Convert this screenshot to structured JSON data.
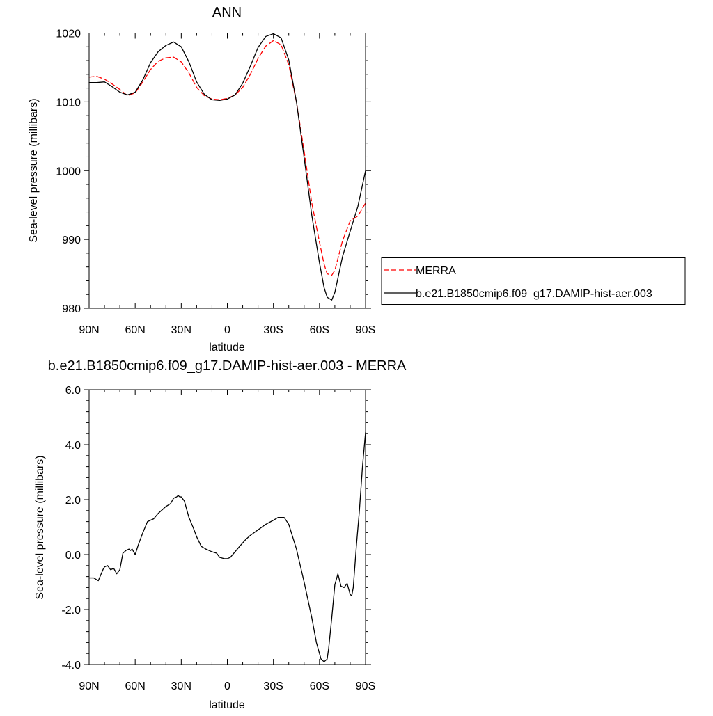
{
  "chart_data": [
    {
      "type": "line",
      "title": "ANN",
      "xlabel": "latitude",
      "ylabel": "Sea-level pressure (millibars)",
      "x_reversed": true,
      "xlim": [
        -90,
        90
      ],
      "ylim": [
        980,
        1020
      ],
      "x_ticks": [
        90,
        60,
        30,
        0,
        -30,
        -60,
        -90
      ],
      "x_tick_labels": [
        "90N",
        "60N",
        "30N",
        "0",
        "30S",
        "60S",
        "90S"
      ],
      "y_ticks": [
        980,
        990,
        1000,
        1010,
        1020
      ],
      "y_tick_labels": [
        "980",
        "990",
        "1000",
        "1010",
        "1020"
      ],
      "legend": "right",
      "x": [
        90,
        85,
        80,
        75,
        70,
        65,
        60,
        55,
        50,
        45,
        40,
        35,
        30,
        25,
        20,
        15,
        10,
        5,
        0,
        -5,
        -10,
        -15,
        -20,
        -25,
        -30,
        -35,
        -40,
        -45,
        -50,
        -55,
        -60,
        -63,
        -65,
        -68,
        -70,
        -75,
        -80,
        -85,
        -90
      ],
      "series": [
        {
          "name": "MERRA",
          "color": "#ff0000",
          "dash": "dashed",
          "values": [
            1013.6,
            1013.7,
            1013.3,
            1012.6,
            1011.8,
            1010.9,
            1011.3,
            1012.9,
            1014.7,
            1015.9,
            1016.4,
            1016.5,
            1015.8,
            1014.2,
            1012.1,
            1010.9,
            1010.4,
            1010.3,
            1010.5,
            1011.0,
            1012.1,
            1014.0,
            1016.3,
            1018.1,
            1018.9,
            1018.3,
            1015.4,
            1010.0,
            1002.8,
            995.3,
            989.6,
            986.4,
            985.0,
            984.8,
            985.5,
            989.8,
            992.7,
            993.4,
            995.3
          ]
        },
        {
          "name": "b.e21.B1850cmip6.f09_g17.DAMIP-hist-aer.003",
          "color": "#000000",
          "dash": "solid",
          "values": [
            1012.8,
            1012.8,
            1012.9,
            1012.2,
            1011.4,
            1011.0,
            1011.4,
            1013.2,
            1015.7,
            1017.3,
            1018.2,
            1018.7,
            1018.0,
            1015.8,
            1012.9,
            1011.1,
            1010.3,
            1010.2,
            1010.4,
            1011.0,
            1012.7,
            1015.2,
            1017.9,
            1019.5,
            1019.9,
            1019.3,
            1016.1,
            1010.0,
            1001.9,
            993.5,
            986.6,
            983.0,
            981.6,
            981.2,
            982.3,
            987.5,
            991.2,
            994.8,
            1000.0
          ]
        }
      ]
    },
    {
      "type": "line",
      "title": "b.e21.B1850cmip6.f09_g17.DAMIP-hist-aer.003 - MERRA",
      "xlabel": "latitude",
      "ylabel": "Sea-level pressure (millibars)",
      "x_reversed": true,
      "xlim": [
        -90,
        90
      ],
      "ylim": [
        -4.0,
        6.0
      ],
      "x_ticks": [
        90,
        60,
        30,
        0,
        -30,
        -60,
        -90
      ],
      "x_tick_labels": [
        "90N",
        "60N",
        "30N",
        "0",
        "30S",
        "60S",
        "90S"
      ],
      "y_ticks": [
        -4,
        -2,
        0,
        2,
        4,
        6
      ],
      "y_tick_labels": [
        "-4.0",
        "-2.0",
        "0.0",
        "2.0",
        "4.0",
        "6.0"
      ],
      "x": [
        90,
        87,
        84,
        81,
        80,
        78,
        76,
        74,
        73,
        72,
        70,
        68,
        66,
        64,
        63,
        62,
        60,
        58,
        55,
        52,
        48,
        45,
        42,
        40,
        37,
        35,
        33,
        32,
        31,
        30,
        28,
        25,
        22,
        20,
        17,
        14,
        12,
        10,
        7,
        5,
        2,
        0,
        -2,
        -5,
        -8,
        -12,
        -15,
        -20,
        -25,
        -30,
        -33,
        -37,
        -40,
        -45,
        -50,
        -55,
        -58,
        -61,
        -63,
        -65,
        -66,
        -68,
        -70,
        -72,
        -74,
        -76,
        -78,
        -80,
        -81,
        -82,
        -84,
        -86,
        -88,
        -90
      ],
      "series": [
        {
          "name": "",
          "color": "#000000",
          "dash": "solid",
          "values": [
            -0.85,
            -0.85,
            -0.95,
            -0.55,
            -0.45,
            -0.4,
            -0.55,
            -0.5,
            -0.6,
            -0.7,
            -0.55,
            0.05,
            0.15,
            0.2,
            0.15,
            0.2,
            0.0,
            0.35,
            0.8,
            1.2,
            1.3,
            1.5,
            1.65,
            1.75,
            1.85,
            2.05,
            2.1,
            2.15,
            2.1,
            2.1,
            1.95,
            1.35,
            0.95,
            0.65,
            0.3,
            0.2,
            0.15,
            0.1,
            0.05,
            -0.1,
            -0.15,
            -0.15,
            -0.1,
            0.1,
            0.3,
            0.55,
            0.7,
            0.9,
            1.1,
            1.25,
            1.35,
            1.35,
            1.1,
            0.2,
            -1.0,
            -2.3,
            -3.2,
            -3.8,
            -3.9,
            -3.8,
            -3.4,
            -2.3,
            -1.1,
            -0.7,
            -1.15,
            -1.2,
            -1.05,
            -1.45,
            -1.5,
            -1.2,
            0.3,
            1.6,
            3.2,
            4.45
          ]
        }
      ]
    }
  ]
}
